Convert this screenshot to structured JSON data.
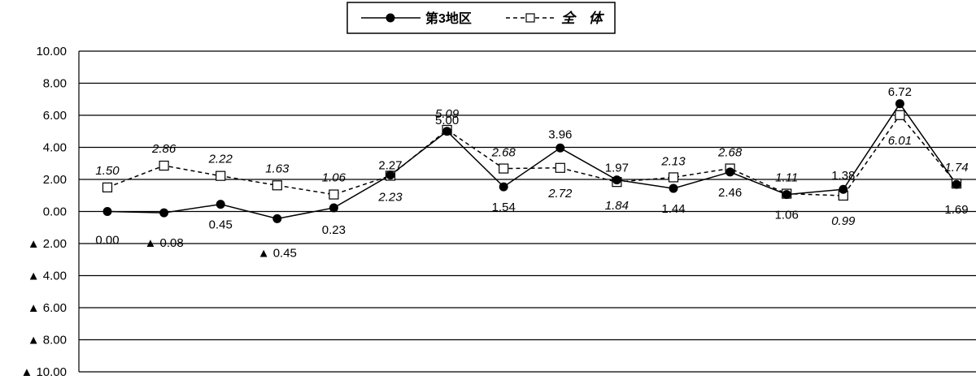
{
  "chart_data": {
    "type": "line",
    "ylim": [
      -10,
      10
    ],
    "ytick_values": [
      10,
      8,
      6,
      4,
      2,
      0,
      -2,
      -4,
      -6,
      -8,
      -10
    ],
    "ytick_labels": [
      "10.00",
      "8.00",
      "6.00",
      "4.00",
      "2.00",
      "0.00",
      "▲ 2.00",
      "▲ 4.00",
      "▲ 6.00",
      "▲ 8.00",
      "▲ 10.00"
    ],
    "grid": true,
    "legend_position": "top-center",
    "x_count": 19,
    "series": [
      {
        "name": "第3地区",
        "marker": "filled-circle",
        "line": "solid",
        "color": "#000000",
        "values": [
          0.0,
          -0.08,
          0.45,
          -0.45,
          0.23,
          2.27,
          5.0,
          1.54,
          3.96,
          1.97,
          1.44,
          2.46,
          1.06,
          1.38,
          6.72,
          1.69
        ],
        "labels": [
          "0.00",
          "▲ 0.08",
          "0.45",
          "▲ 0.45",
          "0.23",
          "2.27",
          "5.00",
          "1.54",
          "3.96",
          "1.97",
          "1.44",
          "2.46",
          "1.06",
          "1.38",
          "6.72",
          "1.69"
        ]
      },
      {
        "name": "全 体",
        "marker": "open-square",
        "line": "dashed",
        "color": "#000000",
        "values": [
          1.5,
          2.86,
          2.22,
          1.63,
          1.06,
          2.23,
          5.09,
          2.68,
          2.72,
          1.84,
          2.13,
          2.68,
          1.11,
          0.99,
          6.01,
          1.74
        ],
        "labels": [
          "1.50",
          "2.86",
          "2.22",
          "1.63",
          "1.06",
          "2.23",
          "5.09",
          "2.68",
          "2.72",
          "1.84",
          "2.13",
          "2.68",
          "1.11",
          "0.99",
          "6.01",
          "1.74"
        ]
      }
    ]
  }
}
